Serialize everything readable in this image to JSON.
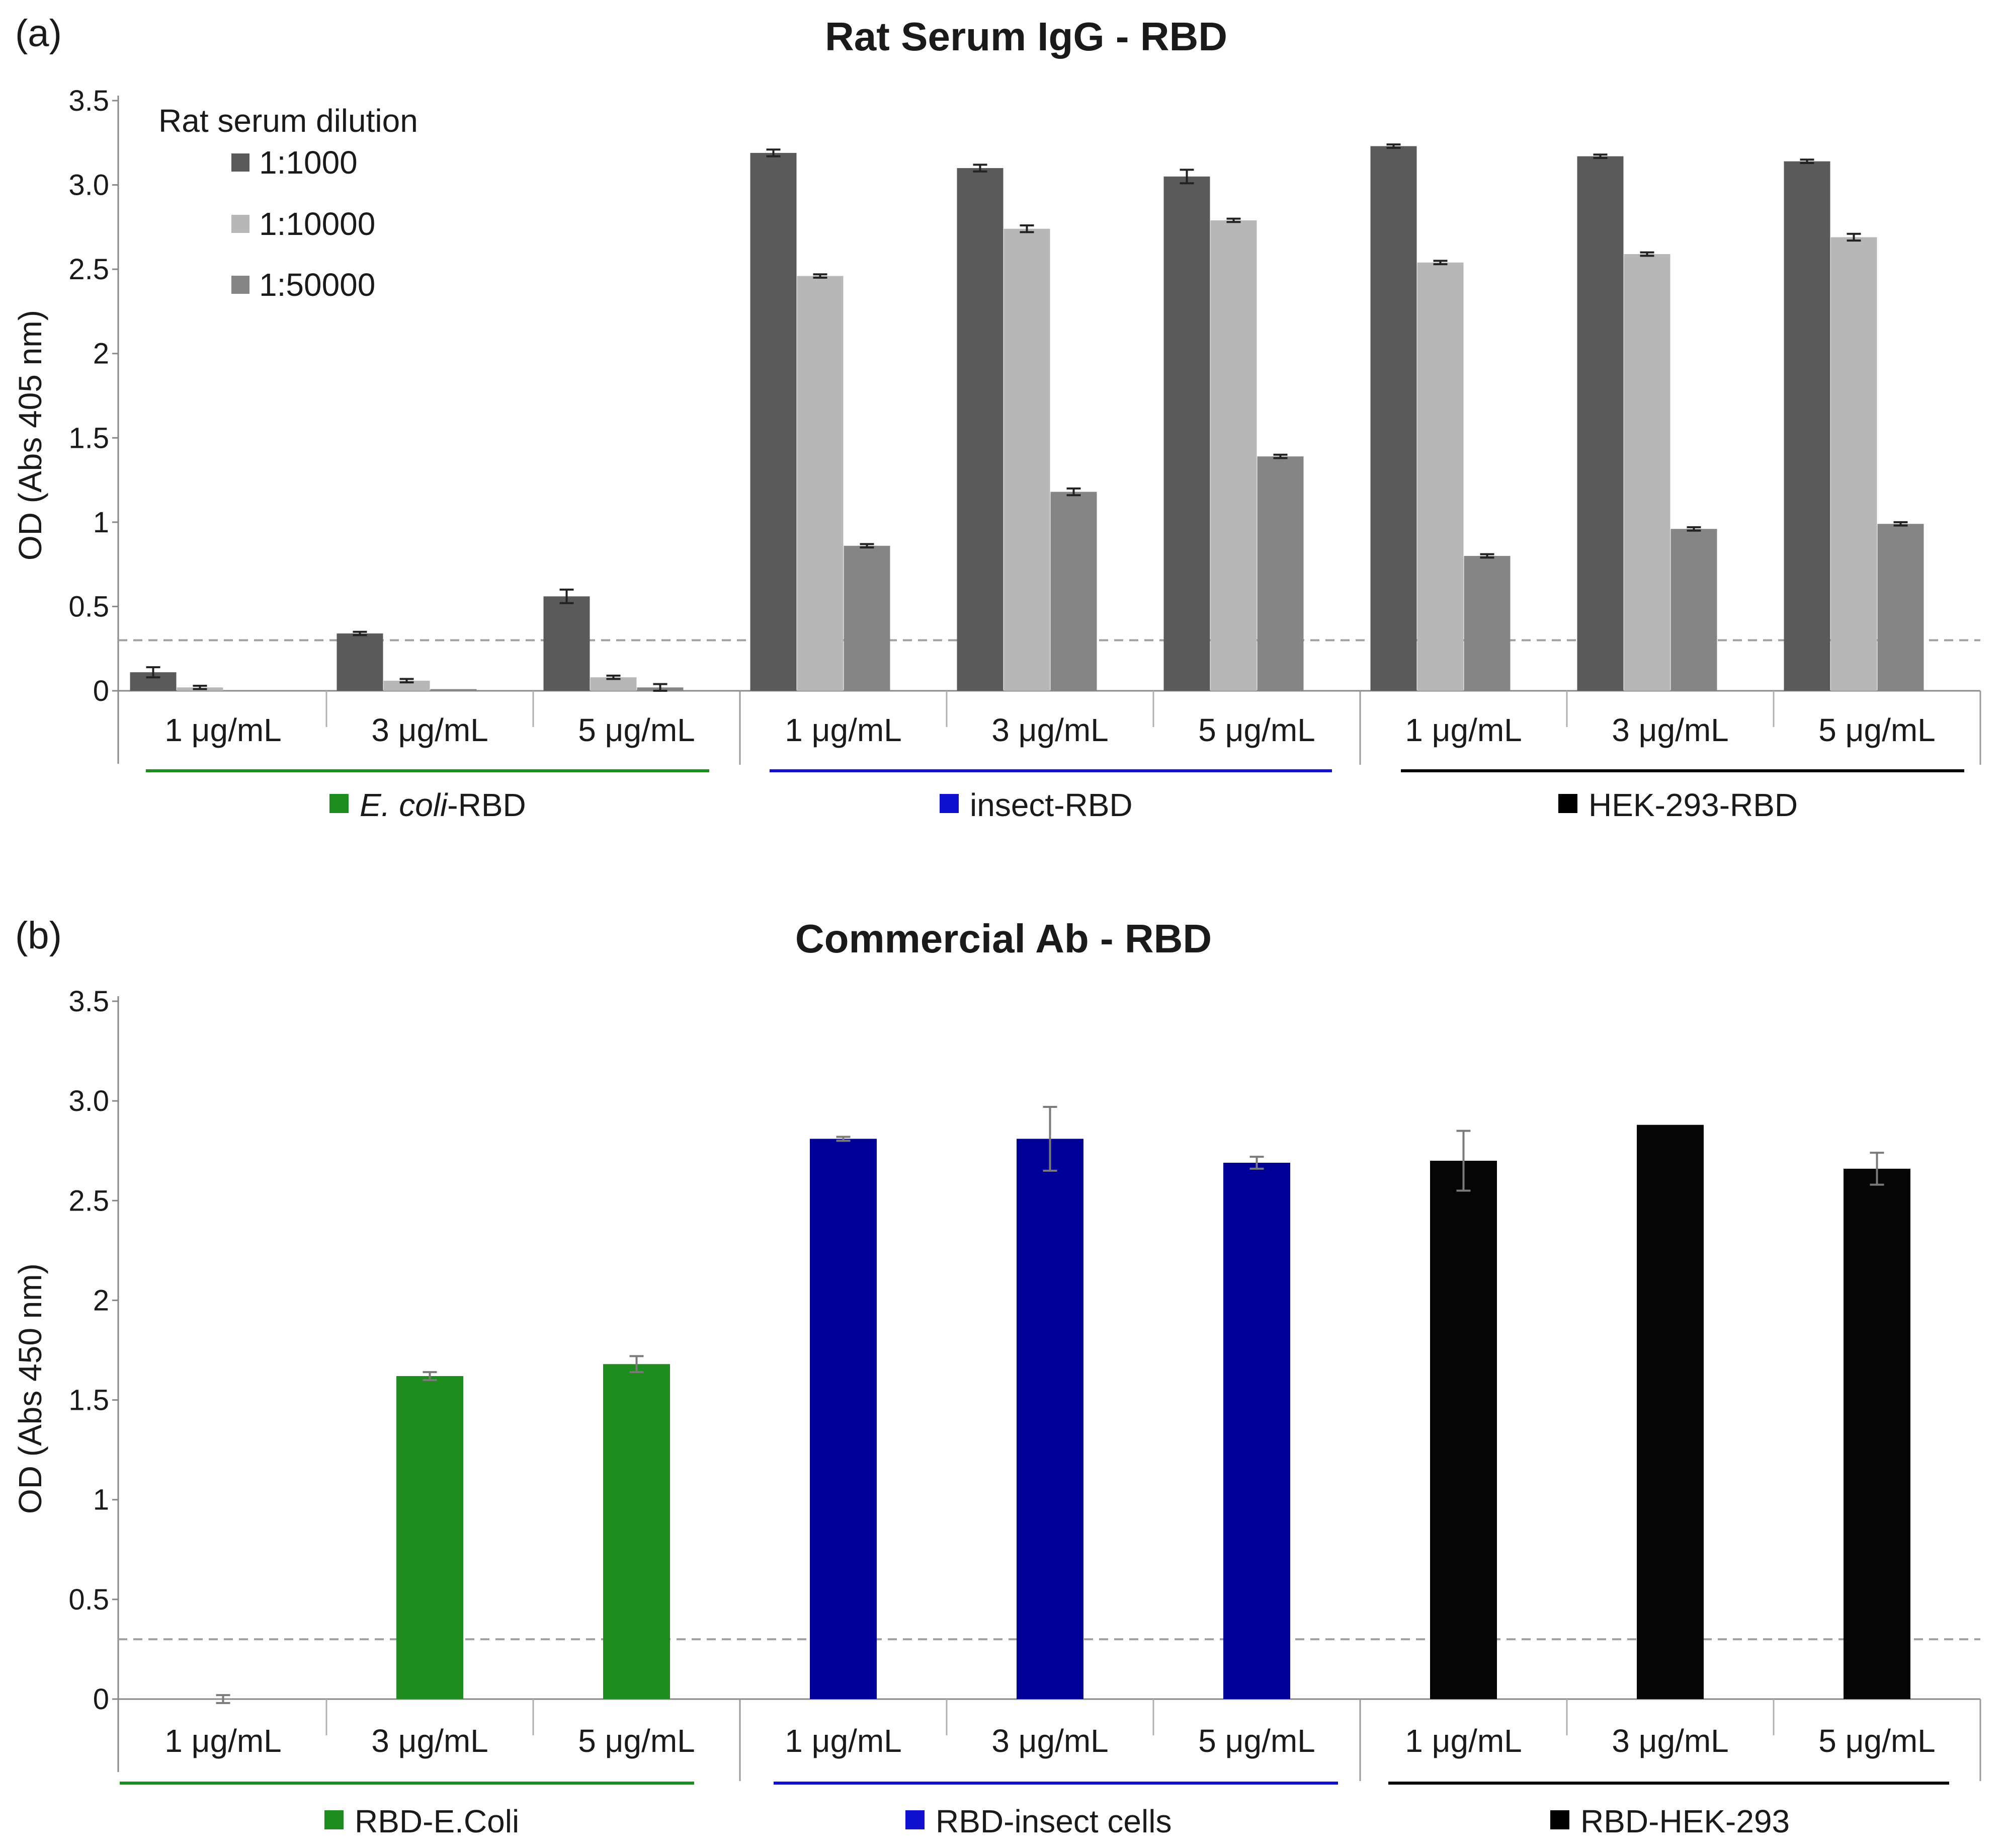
{
  "chart_data": [
    {
      "type": "bar",
      "panel_label": "(a)",
      "title": "Rat Serum IgG - RBD",
      "ylabel": "OD (Abs 405 nm)",
      "xlabel": "",
      "ylim": [
        0,
        3.5
      ],
      "yticks": [
        "0",
        "0.5",
        "1",
        "1.5",
        "2",
        "2.5",
        "3.0",
        "3.5"
      ],
      "cutoff": 0.3,
      "legend_title": "Rat serum dilution",
      "legend_position": "top-left",
      "categories": [
        "1 μg/mL",
        "3 μg/mL",
        "5 μg/mL",
        "1 μg/mL",
        "3 μg/mL",
        "5 μg/mL",
        "1 μg/mL",
        "3 μg/mL",
        "5 μg/mL"
      ],
      "groups": [
        {
          "name": "E. coli-RBD",
          "name_italic": "E. coli",
          "name_rest": "-RBD",
          "color": "#1e8c1e",
          "span": [
            0,
            2
          ]
        },
        {
          "name": "insect-RBD",
          "color": "#1010d0",
          "span": [
            3,
            5
          ]
        },
        {
          "name": "HEK-293-RBD",
          "color": "#000000",
          "span": [
            6,
            8
          ]
        }
      ],
      "series": [
        {
          "name": "1:1000",
          "color": "#5a5a5a",
          "values": [
            0.11,
            0.34,
            0.56,
            3.19,
            3.1,
            3.05,
            3.23,
            3.17,
            3.14
          ],
          "errors": [
            0.03,
            0.01,
            0.04,
            0.02,
            0.02,
            0.04,
            0.01,
            0.01,
            0.01
          ]
        },
        {
          "name": "1:10000",
          "color": "#b7b7b7",
          "values": [
            0.02,
            0.06,
            0.08,
            2.46,
            2.74,
            2.79,
            2.54,
            2.59,
            2.69
          ],
          "errors": [
            0.01,
            0.01,
            0.01,
            0.01,
            0.02,
            0.01,
            0.01,
            0.01,
            0.02
          ]
        },
        {
          "name": "1:50000",
          "color": "#858585",
          "values": [
            0.0,
            0.01,
            0.02,
            0.86,
            1.18,
            1.39,
            0.8,
            0.96,
            0.99
          ],
          "errors": [
            0.0,
            0.0,
            0.02,
            0.01,
            0.02,
            0.01,
            0.01,
            0.01,
            0.01
          ]
        }
      ]
    },
    {
      "type": "bar",
      "panel_label": "(b)",
      "title": "Commercial Ab - RBD",
      "ylabel": "OD (Abs 450 nm)",
      "xlabel": "",
      "ylim": [
        0,
        3.5
      ],
      "yticks": [
        "0",
        "0.5",
        "1",
        "1.5",
        "2",
        "2.5",
        "3.0",
        "3.5"
      ],
      "cutoff": 0.3,
      "categories": [
        "1 μg/mL",
        "3 μg/mL",
        "5 μg/mL",
        "1 μg/mL",
        "3 μg/mL",
        "5 μg/mL",
        "1 μg/mL",
        "3 μg/mL",
        "5 μg/mL"
      ],
      "groups": [
        {
          "name": "RBD-E.Coli",
          "color": "#1e8c1e",
          "span": [
            0,
            2
          ]
        },
        {
          "name": "RBD-insect cells",
          "color": "#1010d0",
          "span": [
            3,
            5
          ]
        },
        {
          "name": "RBD-HEK-293",
          "color": "#000000",
          "span": [
            6,
            8
          ]
        }
      ],
      "series": [
        {
          "name": "Commercial Ab",
          "colors": [
            "#1e8c1e",
            "#1e8c1e",
            "#1e8c1e",
            "#000099",
            "#000099",
            "#000099",
            "#050505",
            "#050505",
            "#050505"
          ],
          "values": [
            0.0,
            1.62,
            1.68,
            2.81,
            2.81,
            2.69,
            2.7,
            2.88,
            2.66
          ],
          "errors": [
            0.02,
            0.02,
            0.04,
            0.01,
            0.16,
            0.03,
            0.15,
            0.0,
            0.08
          ]
        }
      ]
    }
  ]
}
